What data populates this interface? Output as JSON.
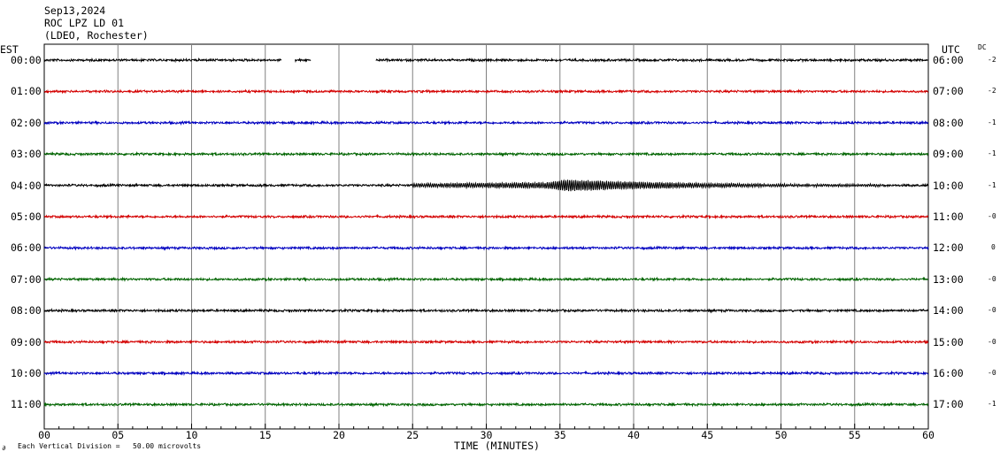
{
  "header": {
    "date": "Sep13,2024",
    "station": "ROC LPZ LD 01",
    "network": "(LDEO, Rochester)"
  },
  "labels": {
    "left_zone": "EST",
    "right_zone": "UTC",
    "dc_header": "DC",
    "xlabel": "TIME (MINUTES)",
    "footer_note": "Each Vertical Division =   50.00 microvolts"
  },
  "colors": {
    "cycle": [
      "#000000",
      "#d40000",
      "#0000c0",
      "#006400"
    ],
    "grid": "#808080"
  },
  "chart_data": {
    "type": "line",
    "subtype": "helicorder",
    "x_unit": "minutes",
    "xlim": [
      0,
      60
    ],
    "x_ticks": [
      0,
      5,
      10,
      15,
      20,
      25,
      30,
      35,
      40,
      45,
      50,
      55,
      60
    ],
    "x_tick_labels": [
      "00",
      "05",
      "10",
      "15",
      "20",
      "25",
      "30",
      "35",
      "40",
      "45",
      "50",
      "55",
      "60"
    ],
    "vertical_division_microvolts": 50.0,
    "rows": [
      {
        "est": "00:00",
        "utc": "06:00",
        "dc": "-2",
        "data_gaps_minutes": [
          [
            16.1,
            17.0
          ],
          [
            18.1,
            22.5
          ]
        ]
      },
      {
        "est": "01:00",
        "utc": "07:00",
        "dc": "-2"
      },
      {
        "est": "02:00",
        "utc": "08:00",
        "dc": "-1"
      },
      {
        "est": "03:00",
        "utc": "09:00",
        "dc": "-1"
      },
      {
        "est": "04:00",
        "utc": "10:00",
        "dc": "-1",
        "event_minutes": [
          25,
          57
        ]
      },
      {
        "est": "05:00",
        "utc": "11:00",
        "dc": "-0"
      },
      {
        "est": "06:00",
        "utc": "12:00",
        "dc": "0"
      },
      {
        "est": "07:00",
        "utc": "13:00",
        "dc": "-0"
      },
      {
        "est": "08:00",
        "utc": "14:00",
        "dc": "-0"
      },
      {
        "est": "09:00",
        "utc": "15:00",
        "dc": "-0"
      },
      {
        "est": "10:00",
        "utc": "16:00",
        "dc": "-0"
      },
      {
        "est": "11:00",
        "utc": "17:00",
        "dc": "-1"
      }
    ]
  }
}
